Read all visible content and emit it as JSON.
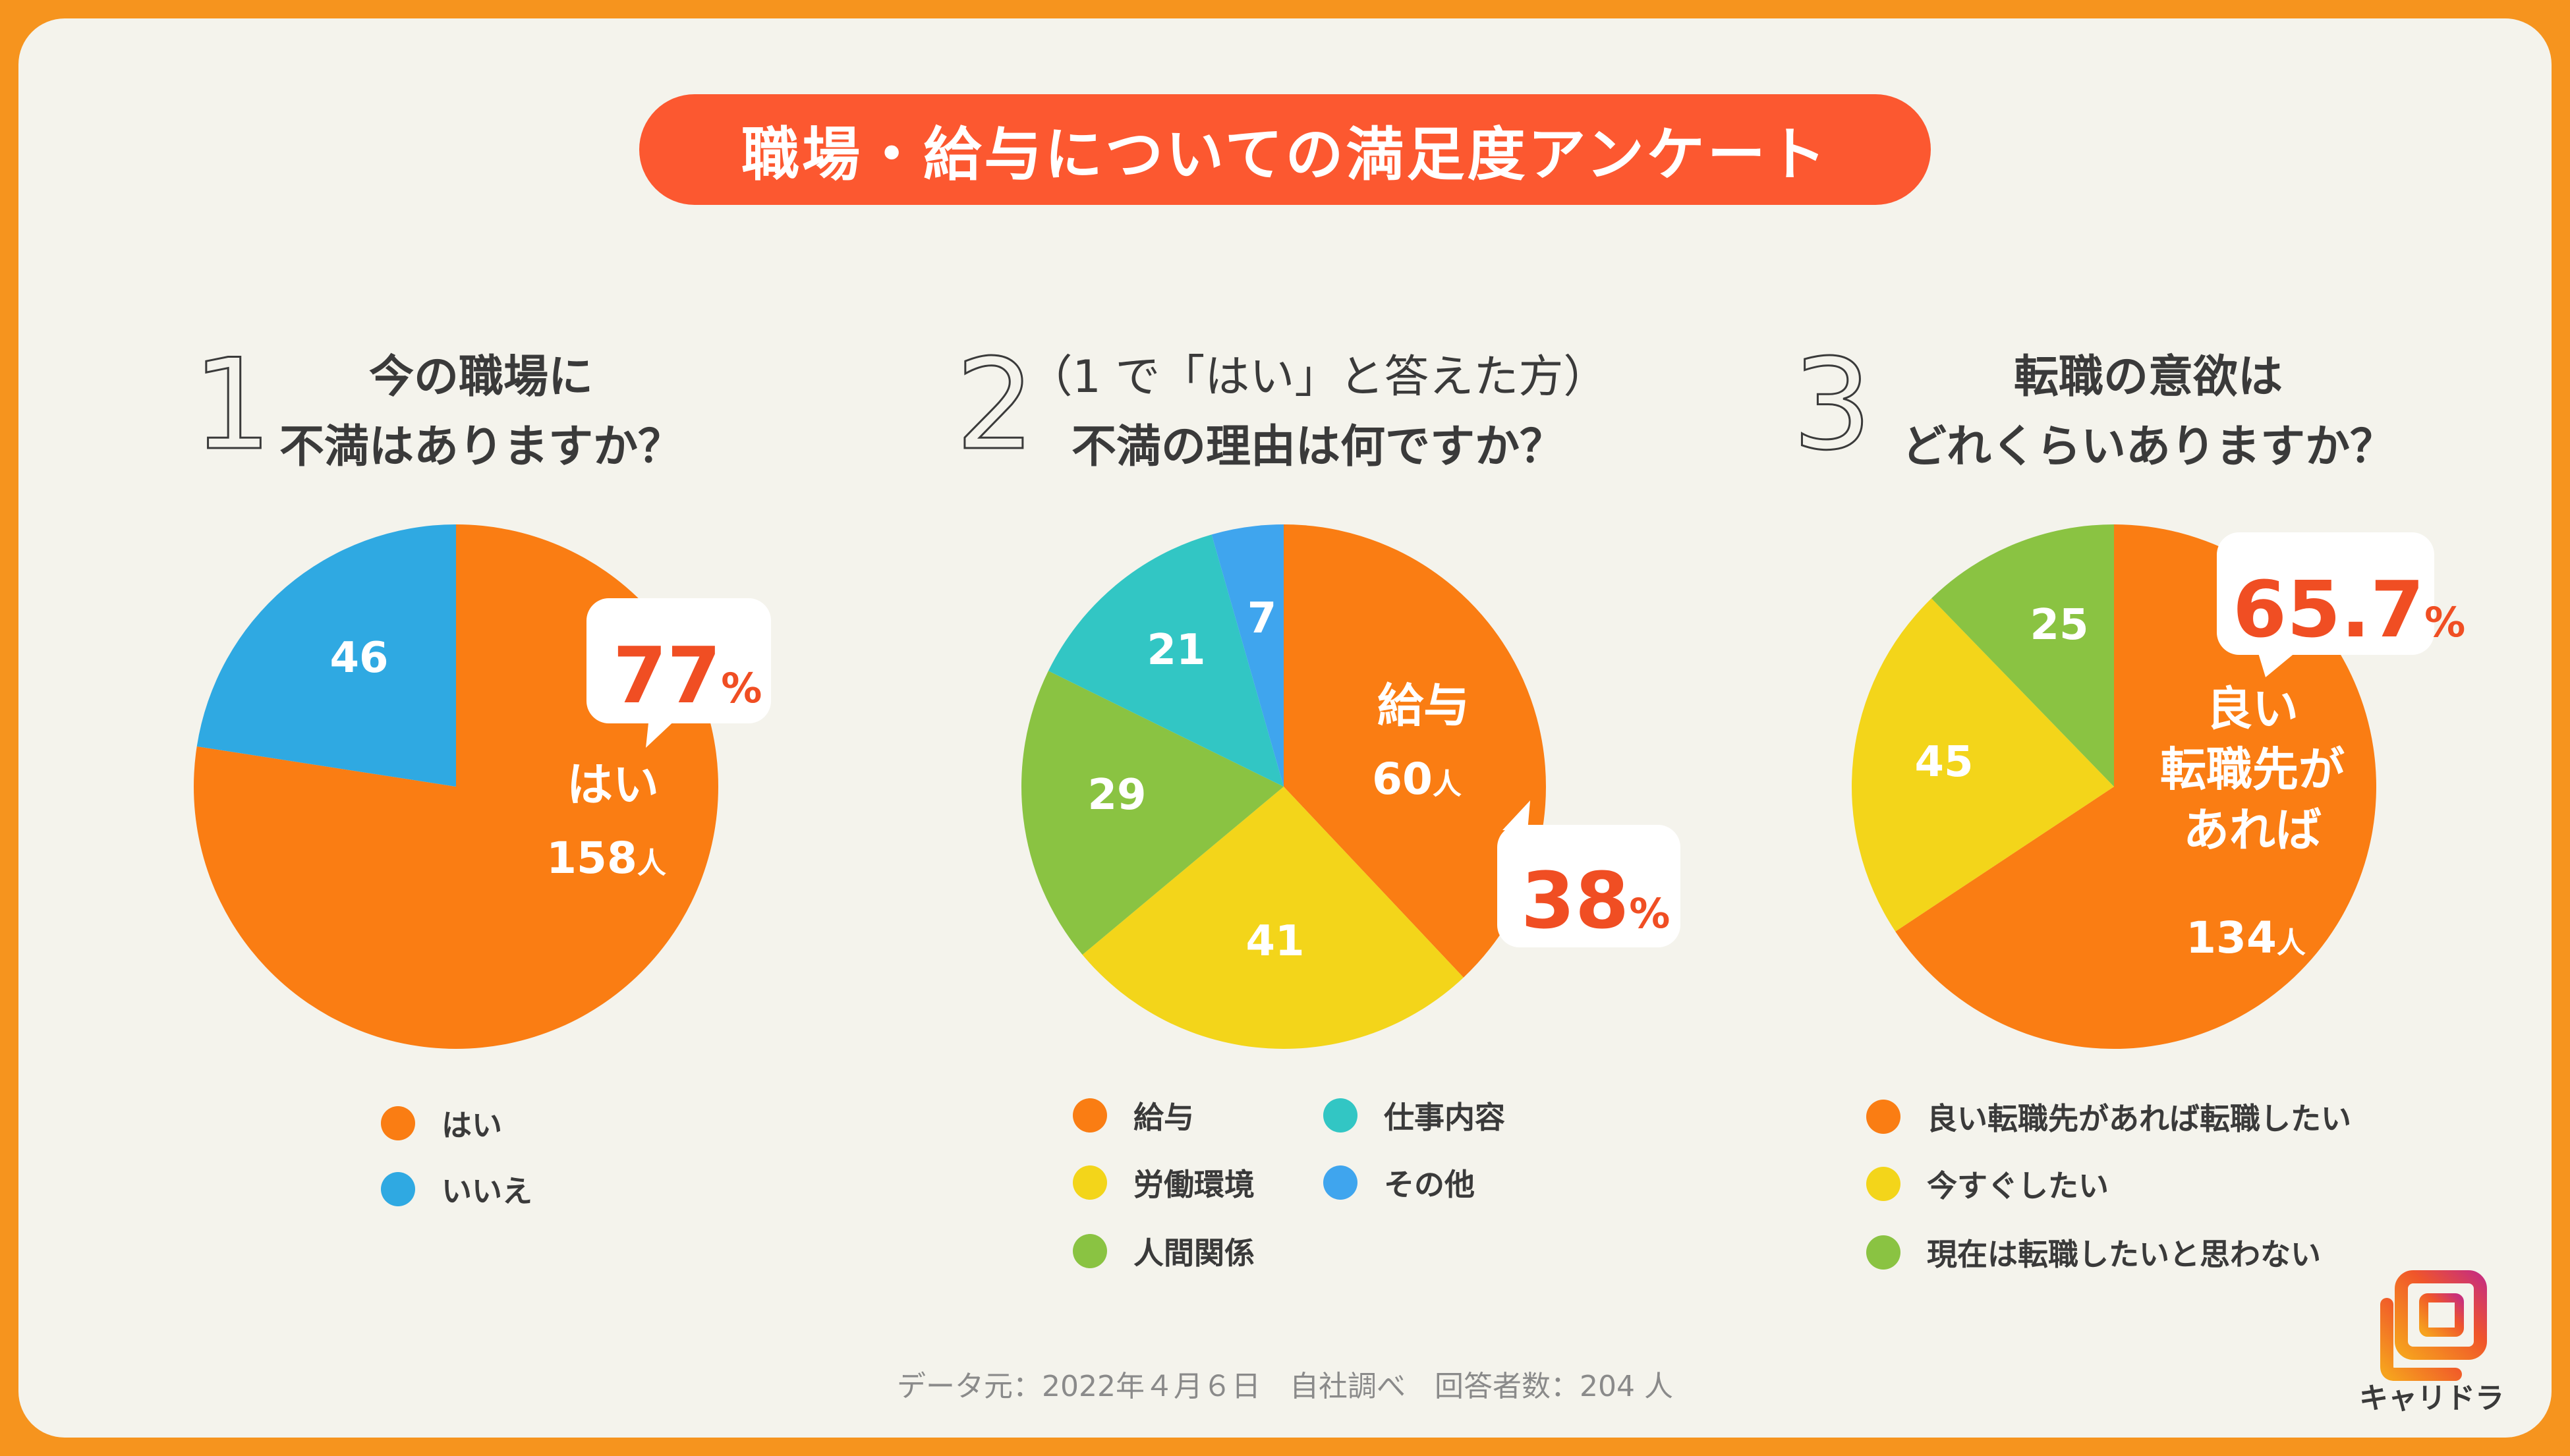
{
  "title": "職場・給与についての満足度アンケート",
  "colors": {
    "orange": "#FA7D13",
    "blue": "#2FA9E2",
    "teal": "#32C6C4",
    "brightblue": "#3FA5EE",
    "green": "#8AC342",
    "yellow": "#F3D51A",
    "accent": "#F04E23",
    "title_bg": "#FC5830"
  },
  "questions": [
    {
      "number": "1",
      "line1": "今の職場に",
      "line2": "不満はありますか？"
    },
    {
      "number": "2",
      "line1": "（1 で「はい」と答えた方）",
      "line2": "不満の理由は何ですか？"
    },
    {
      "number": "3",
      "line1": "転職の意欲は",
      "line2": "どれくらいありますか？"
    }
  ],
  "chart_data": [
    {
      "type": "pie",
      "title": "今の職場に不満はありますか？",
      "slices": [
        {
          "name": "はい",
          "value": 158,
          "color": "#FA7D13",
          "label": "はい",
          "count": "158",
          "unit": "人"
        },
        {
          "name": "いいえ",
          "value": 46,
          "color": "#2FA9E2",
          "label": "46"
        }
      ],
      "callout": {
        "value": "77",
        "unit": "%"
      },
      "legend": [
        "はい",
        "いいえ"
      ]
    },
    {
      "type": "pie",
      "title": "不満の理由は何ですか？",
      "slices": [
        {
          "name": "給与",
          "value": 60,
          "color": "#FA7D13",
          "label": "給与",
          "count": "60",
          "unit": "人"
        },
        {
          "name": "労働環境",
          "value": 41,
          "color": "#F3D51A",
          "label": "41"
        },
        {
          "name": "人間関係",
          "value": 29,
          "color": "#8AC342",
          "label": "29"
        },
        {
          "name": "仕事内容",
          "value": 21,
          "color": "#32C6C4",
          "label": "21"
        },
        {
          "name": "その他",
          "value": 7,
          "color": "#3FA5EE",
          "label": "7"
        }
      ],
      "callout": {
        "value": "38",
        "unit": "%"
      },
      "legend": [
        "給与",
        "仕事内容",
        "労働環境",
        "その他",
        "人間関係"
      ]
    },
    {
      "type": "pie",
      "title": "転職の意欲はどれくらいありますか？",
      "slices": [
        {
          "name": "良い転職先があれば転職したい",
          "value": 134,
          "color": "#FA7D13",
          "label_lines": [
            "良い",
            "転職先が",
            "あれば"
          ],
          "count": "134",
          "unit": "人"
        },
        {
          "name": "今すぐしたい",
          "value": 45,
          "color": "#F3D51A",
          "label": "45"
        },
        {
          "name": "現在は転職したいと思わない",
          "value": 25,
          "color": "#8AC342",
          "label": "25"
        }
      ],
      "callout": {
        "value": "65.7",
        "unit": "%"
      },
      "legend": [
        "良い転職先があれば転職したい",
        "今すぐしたい",
        "現在は転職したいと思わない"
      ]
    }
  ],
  "footer": "データ元：2022年４月６日　自社調べ　回答者数：204 人",
  "logo_text": "キャリドラ"
}
